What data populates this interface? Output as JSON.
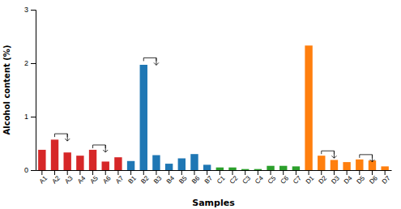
{
  "chart_data": {
    "type": "bar",
    "xlabel": "Samples",
    "ylabel": "Alcohol content (%)",
    "categories": [
      "A1",
      "A2",
      "A3",
      "A4",
      "A5",
      "A6",
      "A7",
      "B1",
      "B2",
      "B3",
      "B4",
      "B5",
      "B6",
      "B7",
      "C1",
      "C2",
      "C3",
      "C4",
      "C5",
      "C6",
      "C7",
      "D1",
      "D2",
      "D3",
      "D4",
      "D5",
      "D6",
      "D7"
    ],
    "values": [
      0.38,
      0.57,
      0.33,
      0.27,
      0.38,
      0.16,
      0.24,
      0.17,
      1.97,
      0.28,
      0.12,
      0.22,
      0.3,
      0.1,
      0.05,
      0.05,
      0.02,
      0.02,
      0.08,
      0.08,
      0.07,
      2.33,
      0.27,
      0.19,
      0.15,
      0.2,
      0.18,
      0.07
    ],
    "colors": [
      "#d62728",
      "#d62728",
      "#d62728",
      "#d62728",
      "#d62728",
      "#d62728",
      "#d62728",
      "#1f77b4",
      "#1f77b4",
      "#1f77b4",
      "#1f77b4",
      "#1f77b4",
      "#1f77b4",
      "#1f77b4",
      "#2ca02c",
      "#2ca02c",
      "#2ca02c",
      "#2ca02c",
      "#2ca02c",
      "#2ca02c",
      "#2ca02c",
      "#ff7f0e",
      "#ff7f0e",
      "#ff7f0e",
      "#ff7f0e",
      "#ff7f0e",
      "#ff7f0e",
      "#ff7f0e"
    ],
    "ylim": [
      0,
      3
    ],
    "yticks": [
      0,
      1,
      2,
      3
    ],
    "grid": false,
    "brackets": [
      {
        "from": "A2",
        "to": "A3",
        "height": 0.68,
        "arrow": "A3"
      },
      {
        "from": "A5",
        "to": "A6",
        "height": 0.47,
        "arrow": "A6"
      },
      {
        "from": "B2",
        "to": "B3",
        "height": 2.1,
        "arrow": "B3"
      },
      {
        "from": "D2",
        "to": "D3",
        "height": 0.36,
        "arrow": "D3"
      },
      {
        "from": "D5",
        "to": "D6",
        "height": 0.29,
        "arrow": "D6"
      }
    ]
  }
}
